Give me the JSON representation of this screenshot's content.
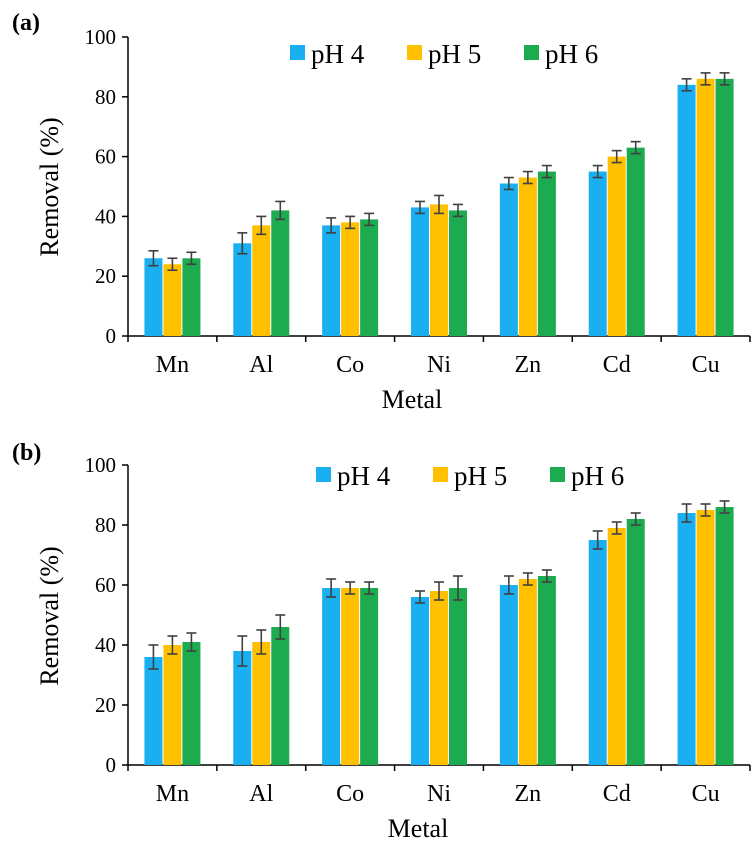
{
  "colors": {
    "pH 4": "#1aaff0",
    "pH 5": "#ffc000",
    "pH 6": "#1cab4f",
    "error_bar": "#404040"
  },
  "chart_data": [
    {
      "panel": "(a)",
      "type": "bar",
      "categories": [
        "Mn",
        "Al",
        "Co",
        "Ni",
        "Zn",
        "Cd",
        "Cu"
      ],
      "series": [
        {
          "name": "pH 4",
          "values": [
            26,
            31,
            37,
            43,
            51,
            55,
            84
          ],
          "errors": [
            2.5,
            3.5,
            2.5,
            2,
            2,
            2,
            2
          ]
        },
        {
          "name": "pH 5",
          "values": [
            24,
            37,
            38,
            44,
            53,
            60,
            86
          ],
          "errors": [
            2,
            3,
            2,
            3,
            2,
            2,
            2
          ]
        },
        {
          "name": "pH 6",
          "values": [
            26,
            42,
            39,
            42,
            55,
            63,
            86
          ],
          "errors": [
            2,
            3,
            2,
            2,
            2,
            2,
            2
          ]
        }
      ],
      "xlabel": "Metal",
      "ylabel": "Removal  (%)",
      "ylim": [
        0,
        100
      ],
      "yticks": [
        "0",
        "20",
        "40",
        "60",
        "80",
        "100"
      ],
      "legend_position": "top-center"
    },
    {
      "panel": "(b)",
      "type": "bar",
      "categories": [
        "Mn",
        "Al",
        "Co",
        "Ni",
        "Zn",
        "Cd",
        "Cu"
      ],
      "series": [
        {
          "name": "pH 4",
          "values": [
            36,
            38,
            59,
            56,
            60,
            75,
            84
          ],
          "errors": [
            4,
            5,
            3,
            2,
            3,
            3,
            3
          ]
        },
        {
          "name": "pH 5",
          "values": [
            40,
            41,
            59,
            58,
            62,
            79,
            85
          ],
          "errors": [
            3,
            4,
            2,
            3,
            2,
            2,
            2
          ]
        },
        {
          "name": "pH 6",
          "values": [
            41,
            46,
            59,
            59,
            63,
            82,
            86
          ],
          "errors": [
            3,
            4,
            2,
            4,
            2,
            2,
            2
          ]
        }
      ],
      "xlabel": "Metal",
      "ylabel": "Removal  (%)",
      "ylim": [
        0,
        100
      ],
      "yticks": [
        "0",
        "20",
        "40",
        "60",
        "80",
        "100"
      ],
      "legend_position": "top-center"
    }
  ]
}
